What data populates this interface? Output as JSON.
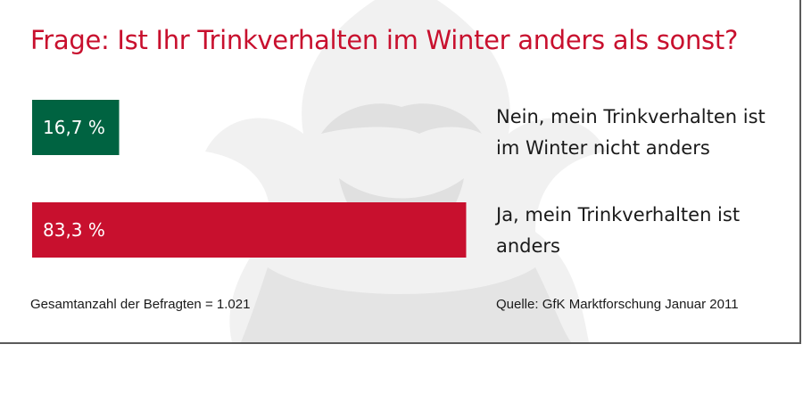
{
  "title": "Frage: Ist Ihr Trinkverhalten im Winter anders als sonst?",
  "respondents_note": "Gesamtanzahl der Befragten = 1.021",
  "source_note": "Quelle: GfK Marktforschung Januar 2011",
  "colors": {
    "title": "#c8102e",
    "bar_nein": "#006341",
    "bar_ja": "#c8102e",
    "watermark": "#e4e4e4"
  },
  "chart_data": {
    "type": "bar",
    "orientation": "horizontal",
    "title": "Frage: Ist Ihr Trinkverhalten im Winter anders als sonst?",
    "categories": [
      "Nein, mein Trinkverhalten ist im Winter nicht anders",
      "Ja, mein Trinkverhalten ist anders"
    ],
    "values": [
      16.7,
      83.3
    ],
    "value_labels": [
      "16,7 %",
      "83,3 %"
    ],
    "unit": "%",
    "xlim": [
      0,
      100
    ],
    "colors": [
      "#006341",
      "#c8102e"
    ],
    "grid": false,
    "legend": "none"
  }
}
